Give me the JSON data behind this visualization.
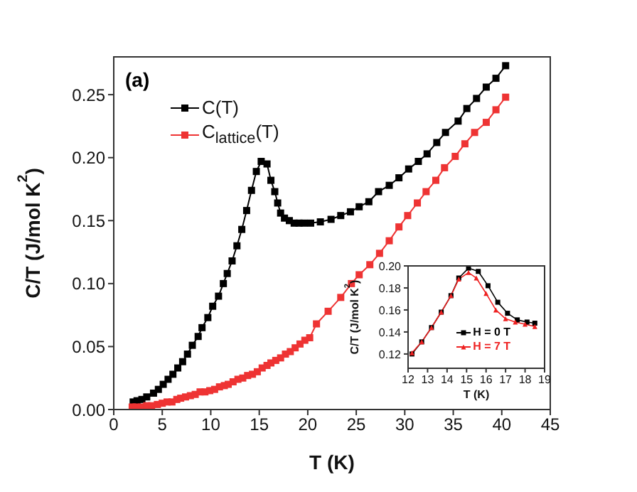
{
  "chart_data": [
    {
      "type": "line",
      "xlabel": "T (K)",
      "ylabel": "C/T (J/mol K$^{2}$)",
      "annotations": [
        "(a)"
      ],
      "xlim": [
        0,
        45
      ],
      "xticks": [
        0,
        5,
        10,
        15,
        20,
        25,
        30,
        35,
        40,
        45
      ],
      "ylim": [
        0,
        0.28
      ],
      "yticks": [
        {
          "value": 0,
          "label": "0.00"
        },
        0.05,
        {
          "value": 0.1,
          "label": "0.10"
        },
        0.15,
        {
          "value": 0.2,
          "label": "0.20"
        },
        0.25
      ],
      "grid": false,
      "legend": "top left",
      "series": [
        {
          "name": "C(T)",
          "color": "#000000",
          "marker": "square",
          "x": [
            2.0,
            2.4,
            2.9,
            3.4,
            4.1,
            4.6,
            5.1,
            5.6,
            6.1,
            6.6,
            7.1,
            7.6,
            8.1,
            8.7,
            9.1,
            9.7,
            10.2,
            10.8,
            11.3,
            11.7,
            12.2,
            12.7,
            13.2,
            13.7,
            14.2,
            14.7,
            15.2,
            15.8,
            16.2,
            16.6,
            16.9,
            17.2,
            17.6,
            18.1,
            18.6,
            19.1,
            19.6,
            20.3,
            21.3,
            22.4,
            23.4,
            24.4,
            25.3,
            26.3,
            27.3,
            28.4,
            29.4,
            30.4,
            31.4,
            32.3,
            33.3,
            34.2,
            35.5,
            36.4,
            37.4,
            38.4,
            39.4,
            40.4
          ],
          "values": [
            0.006,
            0.007,
            0.008,
            0.01,
            0.013,
            0.016,
            0.02,
            0.024,
            0.028,
            0.033,
            0.038,
            0.044,
            0.051,
            0.058,
            0.065,
            0.073,
            0.082,
            0.09,
            0.1,
            0.108,
            0.118,
            0.13,
            0.143,
            0.158,
            0.174,
            0.189,
            0.197,
            0.195,
            0.182,
            0.173,
            0.164,
            0.156,
            0.152,
            0.15,
            0.148,
            0.148,
            0.148,
            0.148,
            0.149,
            0.151,
            0.154,
            0.157,
            0.161,
            0.165,
            0.173,
            0.178,
            0.184,
            0.191,
            0.197,
            0.203,
            0.212,
            0.22,
            0.229,
            0.239,
            0.247,
            0.256,
            0.263,
            0.273
          ]
        },
        {
          "name": "C$_{lattice}$(T)",
          "color": "#ee3333",
          "marker": "square",
          "x": [
            1.9,
            2.3,
            2.9,
            3.4,
            3.9,
            4.5,
            5.0,
            5.5,
            6.0,
            6.5,
            6.9,
            7.4,
            7.9,
            8.4,
            8.9,
            9.4,
            9.9,
            10.4,
            10.9,
            11.4,
            11.8,
            12.3,
            12.8,
            13.3,
            13.8,
            14.3,
            14.8,
            15.3,
            15.8,
            16.2,
            16.7,
            17.2,
            17.7,
            18.2,
            18.7,
            19.2,
            19.7,
            20.2,
            20.9,
            22.1,
            23.4,
            24.5,
            25.3,
            26.4,
            27.4,
            28.4,
            29.4,
            30.3,
            31.3,
            32.2,
            33.2,
            34.1,
            35.2,
            36.2,
            37.2,
            38.4,
            39.4,
            40.4
          ],
          "values": [
            0.002,
            0.002,
            0.002,
            0.003,
            0.003,
            0.004,
            0.005,
            0.006,
            0.006,
            0.008,
            0.009,
            0.01,
            0.011,
            0.012,
            0.014,
            0.014,
            0.015,
            0.016,
            0.018,
            0.019,
            0.02,
            0.022,
            0.024,
            0.025,
            0.027,
            0.028,
            0.03,
            0.033,
            0.035,
            0.037,
            0.039,
            0.041,
            0.044,
            0.046,
            0.049,
            0.052,
            0.055,
            0.057,
            0.068,
            0.078,
            0.089,
            0.1,
            0.107,
            0.115,
            0.124,
            0.134,
            0.145,
            0.154,
            0.164,
            0.173,
            0.182,
            0.192,
            0.201,
            0.211,
            0.22,
            0.228,
            0.238,
            0.248
          ]
        }
      ]
    },
    {
      "type": "line",
      "xlabel": "T (K)",
      "ylabel": "C/T (J/mol K$^{2}$)",
      "xlim": [
        12,
        19
      ],
      "xticks": [
        12,
        13,
        14,
        15,
        16,
        17,
        18,
        19
      ],
      "ylim": [
        0.107,
        0.2
      ],
      "yticks": [
        0.12,
        0.14,
        0.16,
        0.18,
        {
          "value": 0.2,
          "label": "0.20"
        }
      ],
      "grid": false,
      "legend": "right",
      "series": [
        {
          "name": "H = 0 T",
          "color": "#000000",
          "marker": "square",
          "x": [
            12.2,
            12.7,
            13.2,
            13.7,
            14.2,
            14.6,
            15.1,
            15.6,
            16.1,
            16.6,
            17.1,
            17.6,
            18.1,
            18.5
          ],
          "values": [
            0.12,
            0.131,
            0.144,
            0.158,
            0.173,
            0.189,
            0.198,
            0.195,
            0.182,
            0.167,
            0.157,
            0.151,
            0.149,
            0.148
          ]
        },
        {
          "name": "H = 7 T",
          "color": "#ee2222",
          "marker": "triangle",
          "x": [
            12.2,
            12.7,
            13.2,
            13.7,
            14.2,
            14.6,
            15.1,
            15.5,
            16.0,
            16.5,
            17.0,
            17.5,
            18.0,
            18.5
          ],
          "values": [
            0.121,
            0.131,
            0.144,
            0.158,
            0.173,
            0.188,
            0.194,
            0.189,
            0.175,
            0.16,
            0.152,
            0.149,
            0.147,
            0.145
          ]
        }
      ]
    }
  ]
}
